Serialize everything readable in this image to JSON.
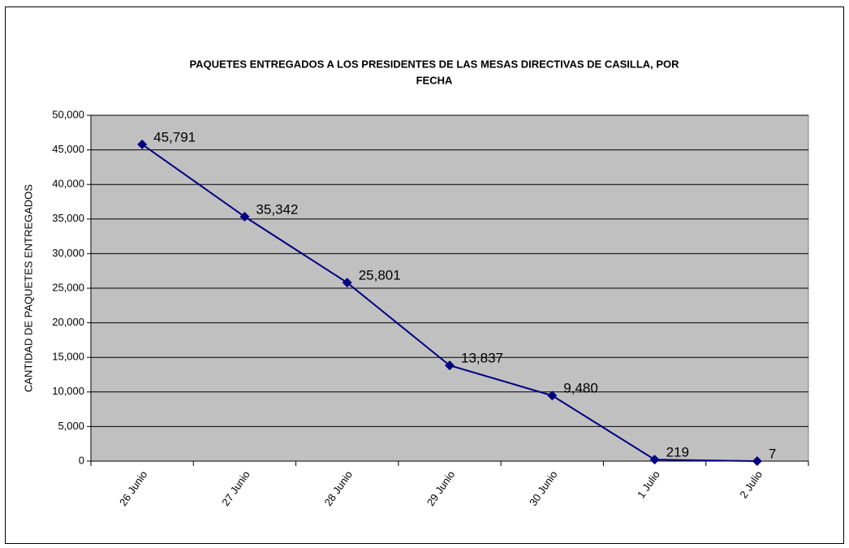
{
  "chart_data": {
    "type": "line",
    "title": [
      "PAQUETES ENTREGADOS A LOS PRESIDENTES DE LAS MESAS DIRECTIVAS DE CASILLA, POR",
      "FECHA"
    ],
    "y_label": "CANTIDAD DE PAQUETES ENTREGADOS",
    "categories": [
      "26 Junio",
      "27 Junio",
      "28 Junio",
      "29 Junio",
      "30 Junio",
      "1 Julio",
      "2 Julio"
    ],
    "values": [
      45791,
      35342,
      25801,
      13837,
      9480,
      219,
      7
    ],
    "value_labels": [
      "45,791",
      "35,342",
      "25,801",
      "13,837",
      "9,480",
      "219",
      "7"
    ],
    "color": "#000080",
    "ylim": [
      0,
      50000
    ],
    "yticks": [
      0,
      {
        "value": 5000,
        "label": "5,000"
      },
      {
        "value": 10000,
        "label": "10,000"
      },
      {
        "value": 15000,
        "label": "15,000"
      },
      {
        "value": 20000,
        "label": "20,000"
      },
      {
        "value": 25000,
        "label": "25,000"
      },
      {
        "value": 30000,
        "label": "30,000"
      },
      {
        "value": 35000,
        "label": "35,000"
      },
      {
        "value": 40000,
        "label": "40,000"
      },
      {
        "value": 45000,
        "label": "45,000"
      },
      {
        "value": 50000,
        "label": "50,000"
      }
    ],
    "grid": true
  }
}
